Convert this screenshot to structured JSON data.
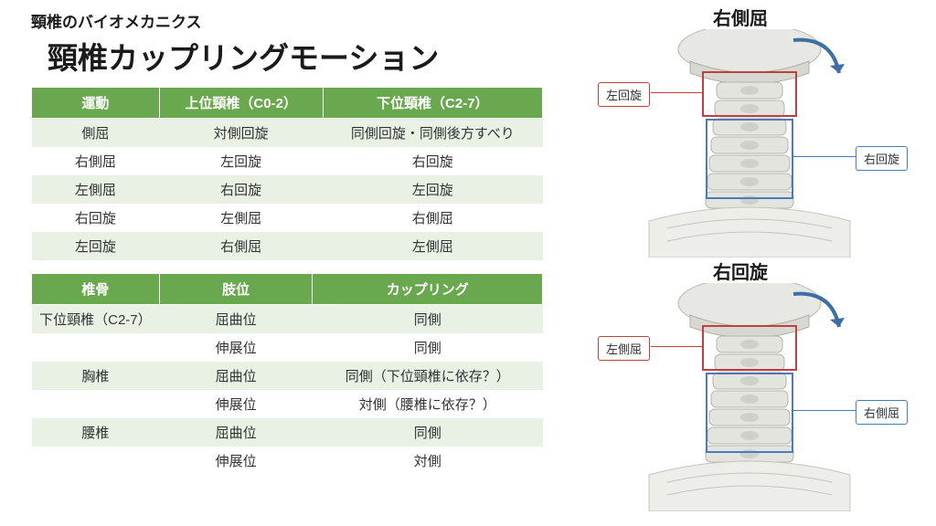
{
  "overtitle": "頸椎のバイオメカニクス",
  "main_title": "頸椎カップリングモーション",
  "table1": {
    "headers": [
      "運動",
      "上位頸椎（C0-2）",
      "下位頸椎（C2-7）"
    ],
    "rows": [
      [
        "側屈",
        "対側回旋",
        "同側回旋・同側後方すべり"
      ],
      [
        "右側屈",
        "左回旋",
        "右回旋"
      ],
      [
        "左側屈",
        "右回旋",
        "左回旋"
      ],
      [
        "右回旋",
        "左側屈",
        "右側屈"
      ],
      [
        "左回旋",
        "右側屈",
        "左側屈"
      ]
    ]
  },
  "table2": {
    "headers": [
      "椎骨",
      "肢位",
      "カップリング"
    ],
    "rows": [
      [
        "下位頸椎（C2-7）",
        "屈曲位",
        "同側"
      ],
      [
        "",
        "伸展位",
        "同側"
      ],
      [
        "胸椎",
        "屈曲位",
        "同側（下位頸椎に依存？）"
      ],
      [
        "",
        "伸展位",
        "対側（腰椎に依存？）"
      ],
      [
        "腰椎",
        "屈曲位",
        "同側"
      ],
      [
        "",
        "伸展位",
        "対側"
      ]
    ]
  },
  "diagram1": {
    "title": "右側屈",
    "upper_callout": "左回旋",
    "lower_callout": "右回旋"
  },
  "diagram2": {
    "title": "右回旋",
    "upper_callout": "左側屈",
    "lower_callout": "右側屈"
  },
  "colors": {
    "header_bg": "#6aa84f",
    "row_odd": "#e9f0e4",
    "row_even": "#ffffff",
    "red": "#c04040",
    "blue": "#4a7db8",
    "arrow": "#3d6fa5"
  }
}
